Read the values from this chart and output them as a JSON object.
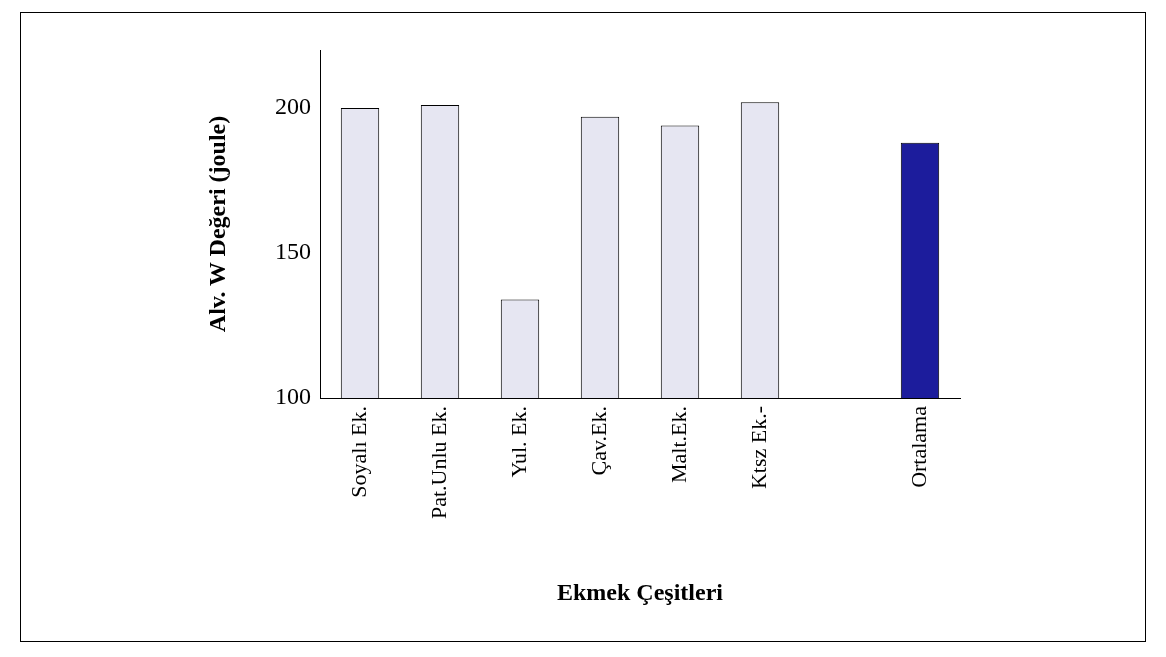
{
  "chart_data": {
    "type": "bar",
    "xlabel": "Ekmek Çeşitleri",
    "ylabel": "Alv. W Değeri (joule)",
    "categories": [
      "Soyalı Ek.",
      "Pat.Unlu Ek.",
      "Yul. Ek.",
      "Çav.Ek.",
      "Malt.Ek.",
      "Ktsz Ek.-",
      null,
      "Ortalama"
    ],
    "values": [
      200,
      201,
      134,
      197,
      194,
      202,
      null,
      188
    ],
    "colors": [
      "#e6e6f2",
      "#e6e6f2",
      "#e6e6f2",
      "#e6e6f2",
      "#e6e6f2",
      "#e6e6f2",
      "#e6e6f2",
      "#1c1c9c"
    ],
    "ylim": [
      100,
      220
    ],
    "yticks": [
      100,
      150,
      200
    ],
    "grid": false,
    "legend": false
  }
}
